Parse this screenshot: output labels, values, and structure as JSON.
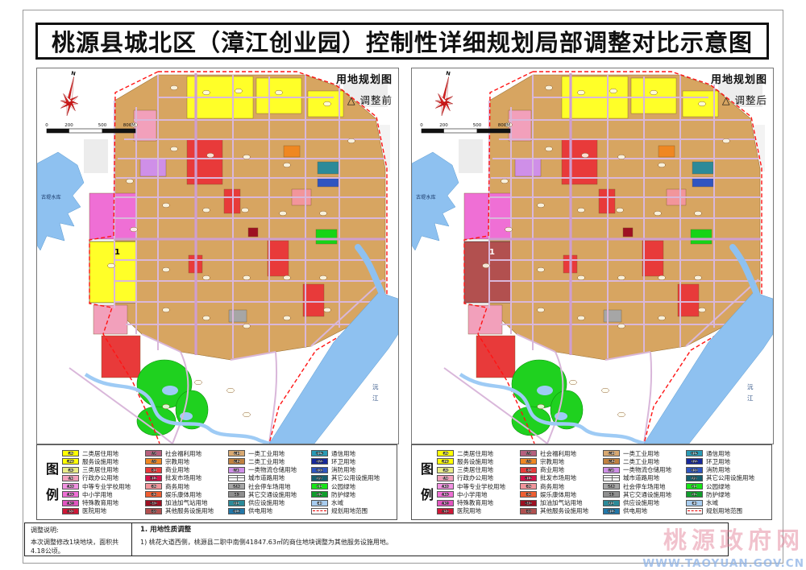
{
  "title": "桃源县城北区（漳江创业园）控制性详细规划局部调整对比示意图",
  "panels": [
    {
      "map_title": "用地规划图",
      "subtitle": "△ 调整前",
      "plot1_fill": "#ffff28",
      "marker_color": "#000000"
    },
    {
      "map_title": "用地规划图",
      "subtitle": "△ 调整后",
      "plot1_fill": "#b2504f",
      "marker_color": "#ffffff"
    }
  ],
  "map": {
    "north_label": "N",
    "reservoir_label": "古堤水库",
    "river_label": "沅江",
    "plot_marker": "1",
    "scale_ticks": [
      "0",
      "200",
      "500",
      "800M"
    ]
  },
  "legend": {
    "heading": "图例",
    "columns": [
      {
        "items": [
          {
            "code": "R2",
            "label": "二类居住用地",
            "color": "#ffff00"
          },
          {
            "code": "R22",
            "label": "服务设施用地",
            "color": "#ffff00"
          },
          {
            "code": "R3",
            "label": "三类居住用地",
            "color": "#e9ec86"
          },
          {
            "code": "A1",
            "label": "行政办公用地",
            "color": "#f2a0bb"
          },
          {
            "code": "A32",
            "label": "中等专业学校用地",
            "color": "#f292e2"
          },
          {
            "code": "A33",
            "label": "中小学用地",
            "color": "#ef6fd5"
          },
          {
            "code": "A34",
            "label": "特殊教育用地",
            "color": "#e255c0"
          },
          {
            "code": "A51",
            "label": "医院用地",
            "color": "#cf1837"
          }
        ]
      },
      {
        "items": [
          {
            "code": "A6",
            "label": "社会福利用地",
            "color": "#b65f7d"
          },
          {
            "code": "A9",
            "label": "宗教用地",
            "color": "#ef8722"
          },
          {
            "code": "B1",
            "label": "商业用地",
            "color": "#e83a3a"
          },
          {
            "code": "B12",
            "label": "批发市场用地",
            "color": "#d6134b"
          },
          {
            "code": "B2",
            "label": "商务用地",
            "color": "#f2959b"
          },
          {
            "code": "B3",
            "label": "娱乐康体用地",
            "color": "#ef5e31"
          },
          {
            "code": "B41",
            "label": "加油加气站用地",
            "color": "#9e1022"
          },
          {
            "code": "B9",
            "label": "其他服务设施用地",
            "color": "#b2504f"
          }
        ]
      },
      {
        "items": [
          {
            "code": "M1",
            "label": "一类工业用地",
            "color": "#d9a971"
          },
          {
            "code": "M2",
            "label": "二类工业用地",
            "color": "#c1813f"
          },
          {
            "code": "W1",
            "label": "一类物流仓储用地",
            "color": "#cf8fe8"
          },
          {
            "code": "S1",
            "label": "城市道路用地",
            "color": "#ffffff",
            "type": "road"
          },
          {
            "code": "S42",
            "label": "社会停车场用地",
            "color": "#a6a6a6"
          },
          {
            "code": "S9",
            "label": "其它交通设施用地",
            "color": "#8f8f8f"
          },
          {
            "code": "U1",
            "label": "供应设施用地",
            "color": "#2b8a99"
          },
          {
            "code": "U12",
            "label": "供电用地",
            "color": "#2277a8"
          }
        ]
      },
      {
        "items": [
          {
            "code": "U15",
            "label": "通信用地",
            "color": "#2a9ab5"
          },
          {
            "code": "U22",
            "label": "环卫用地",
            "color": "#16289b"
          },
          {
            "code": "U31",
            "label": "消防用地",
            "color": "#2f55c0"
          },
          {
            "code": "U9",
            "label": "其它公用设施用地",
            "color": "#175e6e"
          },
          {
            "code": "G1",
            "label": "公园绿地",
            "color": "#16e616"
          },
          {
            "code": "G2",
            "label": "防护绿地",
            "color": "#0f9e2c"
          },
          {
            "code": "E1",
            "label": "水域",
            "color": "#a8cdf0"
          },
          {
            "code": "",
            "label": "规划用地范围",
            "color": "#ffffff",
            "type": "boundary"
          }
        ]
      }
    ]
  },
  "notes": {
    "left_title": "调整说明:",
    "left_body": "本次调整修改1块地块，面积共4.18公顷。",
    "right_title": "1. 用地性质调整",
    "right_body": "1) 桃花大道西侧，桃源县二职中南侧41847.63㎡的商住地块调整为其他服务设施用地。"
  },
  "watermark": {
    "name": "桃源政府网",
    "url": "WWW.TAOYUAN.GOV.CN"
  }
}
